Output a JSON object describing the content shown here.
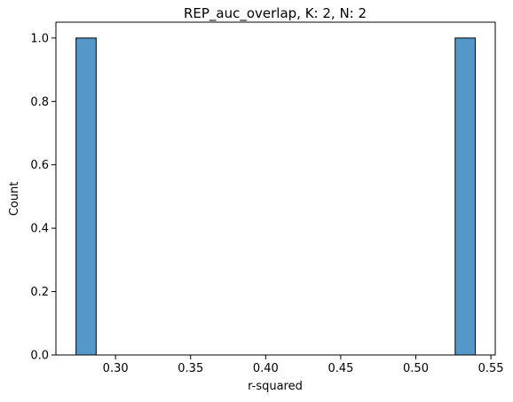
{
  "chart_data": {
    "type": "bar",
    "title": "REP_auc_overlap, K: 2, N: 2",
    "xlabel": "r-squared",
    "ylabel": "Count",
    "xlim": [
      0.2603,
      0.5529
    ],
    "ylim": [
      0,
      1.05
    ],
    "bins": [
      {
        "x0": 0.2737,
        "x1": 0.2871,
        "count": 1
      },
      {
        "x0": 0.5262,
        "x1": 0.5396,
        "count": 1
      }
    ],
    "xticks": [
      0.3,
      0.35,
      0.4,
      0.45,
      0.5,
      0.55
    ],
    "xtick_labels": [
      "0.30",
      "0.35",
      "0.40",
      "0.45",
      "0.50",
      "0.55"
    ],
    "yticks": [
      0.0,
      0.2,
      0.4,
      0.6,
      0.8,
      1.0
    ],
    "ytick_labels": [
      "0.0",
      "0.2",
      "0.4",
      "0.6",
      "0.8",
      "1.0"
    ],
    "bar_color": "#5497C9",
    "edge_color": "#000000",
    "grid": false
  }
}
